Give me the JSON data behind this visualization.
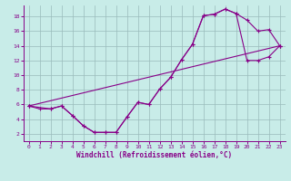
{
  "bg_color": "#c8ece8",
  "line_color": "#880088",
  "grid_color": "#99bbbb",
  "xlim": [
    -0.5,
    23.5
  ],
  "ylim": [
    1.0,
    19.5
  ],
  "xticks": [
    0,
    1,
    2,
    3,
    4,
    5,
    6,
    7,
    8,
    9,
    10,
    11,
    12,
    13,
    14,
    15,
    16,
    17,
    18,
    19,
    20,
    21,
    22,
    23
  ],
  "yticks": [
    2,
    4,
    6,
    8,
    10,
    12,
    14,
    16,
    18
  ],
  "xlabel": "Windchill (Refroidissement éolien,°C)",
  "curve1_x": [
    0,
    1,
    2,
    3,
    4,
    5,
    6,
    7,
    8,
    9,
    10,
    11,
    12,
    13,
    14,
    15,
    16,
    17,
    18,
    19,
    20,
    21,
    22,
    23
  ],
  "curve1_y": [
    5.8,
    5.4,
    5.4,
    5.8,
    4.5,
    3.1,
    2.2,
    2.2,
    2.2,
    4.3,
    6.3,
    6.0,
    8.1,
    9.7,
    12.1,
    14.2,
    18.1,
    18.3,
    19.0,
    18.4,
    17.5,
    16.0,
    16.2,
    14.0
  ],
  "curve2_x": [
    0,
    2,
    3,
    4,
    5,
    6,
    7,
    8,
    9,
    10,
    11,
    12,
    13,
    14,
    15,
    16,
    17,
    18,
    19,
    20,
    21,
    22,
    23
  ],
  "curve2_y": [
    5.8,
    5.4,
    5.8,
    4.5,
    3.1,
    2.2,
    2.2,
    2.2,
    4.3,
    6.3,
    6.0,
    8.1,
    9.7,
    12.1,
    14.2,
    18.1,
    18.3,
    19.0,
    18.4,
    12.0,
    12.0,
    12.5,
    14.0
  ],
  "line_x": [
    0,
    23
  ],
  "line_y": [
    5.8,
    14.0
  ]
}
